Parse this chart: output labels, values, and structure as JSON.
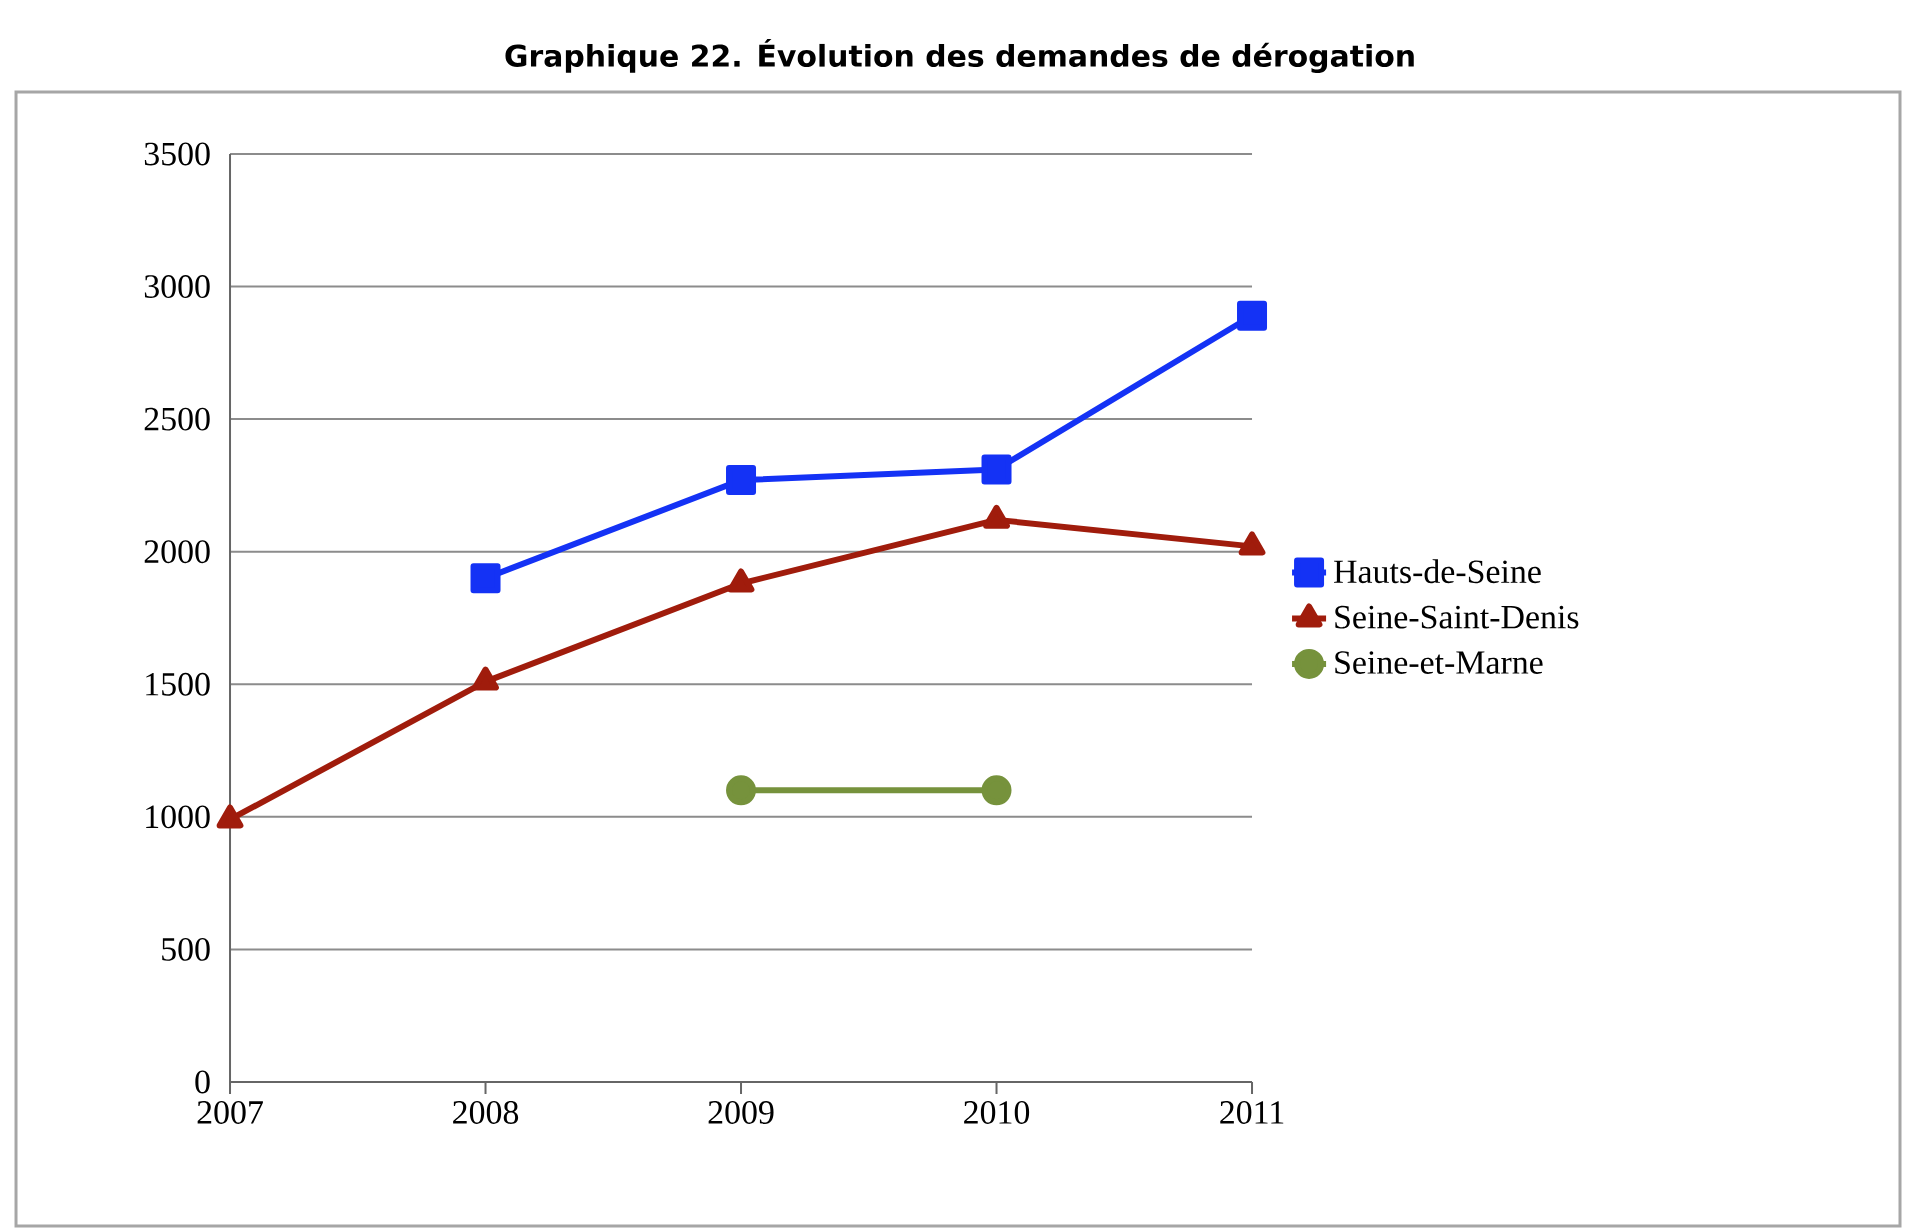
{
  "chart_data": {
    "type": "line",
    "title": "Graphique 22.  Évolution des demandes de dérogation",
    "series": [
      {
        "name": "Hauts-de-Seine",
        "color": "#1432f5",
        "marker": "square",
        "x": [
          2008,
          2009,
          2010,
          2011
        ],
        "values": [
          1900,
          2270,
          2310,
          2890
        ]
      },
      {
        "name": "Seine-Saint-Denis",
        "color": "#a01c0c",
        "marker": "triangle",
        "x": [
          2007,
          2008,
          2009,
          2010,
          2011
        ],
        "values": [
          990,
          1510,
          1880,
          2120,
          2020
        ]
      },
      {
        "name": "Seine-et-Marne",
        "color": "#76923c",
        "marker": "circle",
        "x": [
          2009,
          2010
        ],
        "values": [
          1100,
          1100
        ]
      }
    ],
    "xlim": [
      2007,
      2011
    ],
    "xticks": [
      2007,
      2008,
      2009,
      2010,
      2011
    ],
    "ylim": [
      0,
      3500
    ],
    "yticks": [
      0,
      500,
      1000,
      1500,
      2000,
      2500,
      3000,
      3500
    ],
    "grid": "y",
    "legend": "right"
  }
}
